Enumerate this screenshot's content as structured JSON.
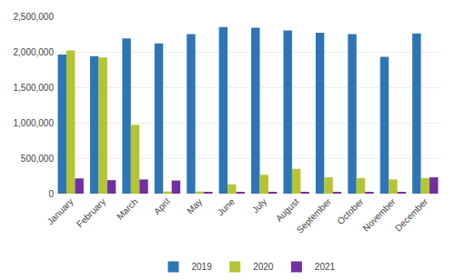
{
  "chart_data": {
    "type": "bar",
    "categories": [
      "January",
      "February",
      "March",
      "April",
      "May",
      "June",
      "July",
      "August",
      "September",
      "October",
      "November",
      "December"
    ],
    "series": [
      {
        "name": "2019",
        "color": "#2e75b6",
        "values": [
          1960000,
          1940000,
          2190000,
          2120000,
          2250000,
          2350000,
          2340000,
          2300000,
          2270000,
          2250000,
          1930000,
          2260000
        ]
      },
      {
        "name": "2020",
        "color": "#b5c433",
        "values": [
          2020000,
          1920000,
          970000,
          30000,
          30000,
          130000,
          265000,
          350000,
          230000,
          220000,
          200000,
          220000
        ]
      },
      {
        "name": "2021",
        "color": "#7030a0",
        "values": [
          215000,
          190000,
          200000,
          185000,
          25000,
          15000,
          15000,
          15000,
          15000,
          15000,
          15000,
          230000
        ]
      }
    ],
    "ylim": [
      0,
      2500000
    ],
    "yticks": [
      0,
      {
        "value": 500000,
        "label": "500,000"
      },
      {
        "value": 1000000,
        "label": "1,000,000"
      },
      {
        "value": 1500000,
        "label": "1,500,000"
      },
      {
        "value": 2000000,
        "label": "2,000,000"
      },
      {
        "value": 2500000,
        "label": "2,500,000"
      }
    ],
    "grid": true,
    "legend": "bottom"
  }
}
